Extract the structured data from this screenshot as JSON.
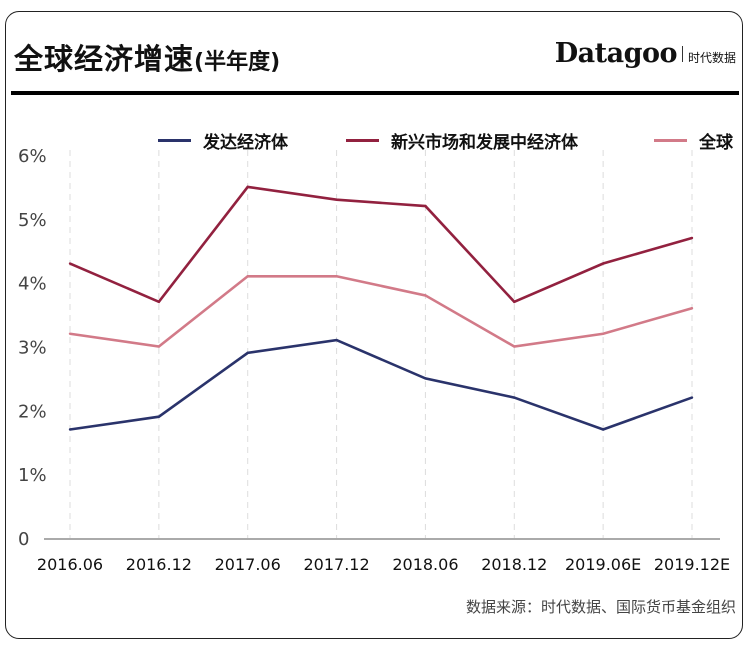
{
  "header": {
    "title": "全球经济增速",
    "title_suffix": "(半年度)",
    "brand_name": "Datagoo",
    "brand_cn": "时代数据"
  },
  "footer": {
    "source": "数据来源：时代数据、国际货币基金组织"
  },
  "colors": {
    "advanced": "#2a336b",
    "emerging": "#92213f",
    "world": "#d27a88",
    "grid": "#dddddd",
    "axis": "#555555"
  },
  "chart_data": {
    "type": "line",
    "title": "全球经济增速(半年度)",
    "xlabel": "",
    "ylabel": "",
    "categories": [
      "2016.06",
      "2016.12",
      "2017.06",
      "2017.12",
      "2018.06",
      "2018.12",
      "2019.06E",
      "2019.12E"
    ],
    "y_ticks": [
      "0",
      "1%",
      "2%",
      "3%",
      "4%",
      "5%",
      "6%"
    ],
    "ylim": [
      0,
      6
    ],
    "y_unit": "%",
    "grid": "vertical dashed",
    "legend_position": "top",
    "series": [
      {
        "name": "发达经济体",
        "key": "advanced",
        "values": [
          1.7,
          1.9,
          2.9,
          3.1,
          2.5,
          2.2,
          1.7,
          2.2
        ]
      },
      {
        "name": "新兴市场和发展中经济体",
        "key": "emerging",
        "values": [
          4.3,
          3.7,
          5.5,
          5.3,
          5.2,
          3.7,
          4.3,
          4.7
        ]
      },
      {
        "name": "全球",
        "key": "world",
        "values": [
          3.2,
          3.0,
          4.1,
          4.1,
          3.8,
          3.0,
          3.2,
          3.6
        ]
      }
    ]
  }
}
